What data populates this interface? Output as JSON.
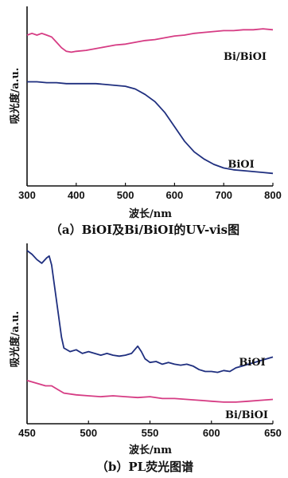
{
  "chart_data": [
    {
      "type": "line",
      "caption": "（a）BiOI及Bi/BiOI的UV-vis图",
      "xlabel": "波长/nm",
      "ylabel": "吸光度/a.u.",
      "xlim": [
        300,
        800
      ],
      "xticks": [
        300,
        400,
        500,
        600,
        700,
        800
      ],
      "yticks_shown": false,
      "series": [
        {
          "name": "Bi/BiOI",
          "color": "#d63c84",
          "x": [
            300,
            310,
            320,
            330,
            340,
            350,
            360,
            370,
            380,
            390,
            400,
            420,
            440,
            460,
            480,
            500,
            520,
            540,
            560,
            580,
            600,
            620,
            640,
            660,
            680,
            700,
            720,
            740,
            760,
            780,
            800
          ],
          "y": [
            0.84,
            0.85,
            0.84,
            0.85,
            0.84,
            0.83,
            0.8,
            0.77,
            0.75,
            0.745,
            0.75,
            0.755,
            0.765,
            0.775,
            0.785,
            0.79,
            0.8,
            0.81,
            0.815,
            0.825,
            0.835,
            0.84,
            0.85,
            0.855,
            0.86,
            0.865,
            0.865,
            0.87,
            0.87,
            0.875,
            0.87
          ]
        },
        {
          "name": "BiOI",
          "color": "#1f2f7f",
          "x": [
            300,
            320,
            340,
            360,
            380,
            400,
            420,
            440,
            460,
            480,
            500,
            520,
            540,
            560,
            580,
            600,
            620,
            640,
            660,
            680,
            700,
            720,
            740,
            760,
            780,
            800
          ],
          "y": [
            0.58,
            0.58,
            0.575,
            0.575,
            0.57,
            0.57,
            0.57,
            0.57,
            0.565,
            0.56,
            0.555,
            0.54,
            0.51,
            0.47,
            0.41,
            0.33,
            0.25,
            0.19,
            0.15,
            0.12,
            0.1,
            0.09,
            0.085,
            0.08,
            0.075,
            0.07
          ]
        }
      ]
    },
    {
      "type": "line",
      "caption": "（b）PL荧光图谱",
      "xlabel": "波长/nm",
      "ylabel": "吸光度/a.u.",
      "xlim": [
        450,
        650
      ],
      "xticks": [
        450,
        500,
        550,
        600,
        650
      ],
      "yticks_shown": false,
      "series": [
        {
          "name": "BiOI",
          "color": "#1f2f7f",
          "x": [
            450,
            454,
            458,
            462,
            466,
            468,
            470,
            472,
            474,
            476,
            478,
            480,
            485,
            490,
            495,
            500,
            505,
            510,
            515,
            520,
            525,
            530,
            535,
            540,
            543,
            546,
            550,
            555,
            560,
            565,
            570,
            575,
            580,
            585,
            590,
            595,
            600,
            605,
            610,
            615,
            620,
            625,
            630,
            635,
            640,
            645,
            650
          ],
          "y": [
            0.96,
            0.94,
            0.91,
            0.89,
            0.92,
            0.93,
            0.88,
            0.78,
            0.68,
            0.58,
            0.48,
            0.42,
            0.4,
            0.41,
            0.39,
            0.4,
            0.39,
            0.38,
            0.39,
            0.38,
            0.375,
            0.38,
            0.39,
            0.43,
            0.4,
            0.36,
            0.34,
            0.345,
            0.33,
            0.34,
            0.33,
            0.325,
            0.33,
            0.32,
            0.3,
            0.29,
            0.29,
            0.285,
            0.295,
            0.29,
            0.31,
            0.32,
            0.33,
            0.34,
            0.35,
            0.36,
            0.37
          ]
        },
        {
          "name": "Bi/BiOI",
          "color": "#d63c84",
          "x": [
            450,
            455,
            460,
            465,
            470,
            475,
            480,
            490,
            500,
            510,
            520,
            530,
            540,
            550,
            560,
            570,
            580,
            590,
            600,
            610,
            620,
            630,
            640,
            650
          ],
          "y": [
            0.24,
            0.23,
            0.22,
            0.21,
            0.21,
            0.19,
            0.17,
            0.16,
            0.155,
            0.15,
            0.155,
            0.15,
            0.145,
            0.15,
            0.14,
            0.14,
            0.135,
            0.13,
            0.125,
            0.12,
            0.12,
            0.125,
            0.13,
            0.135
          ]
        }
      ]
    }
  ]
}
